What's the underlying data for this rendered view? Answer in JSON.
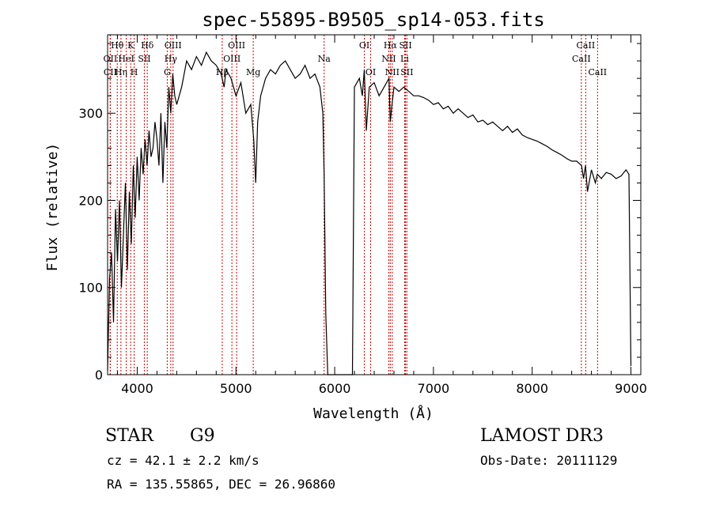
{
  "chart_data": {
    "type": "line",
    "title": "spec-55895-B9505_sp14-053.fits",
    "xlabel": "Wavelength (Å)",
    "ylabel": "Flux (relative)",
    "xlim": [
      3700,
      9100
    ],
    "ylim": [
      0,
      390
    ],
    "x_ticks": [
      4000,
      5000,
      6000,
      7000,
      8000,
      9000
    ],
    "y_ticks": [
      0,
      100,
      200,
      300
    ],
    "series": [
      {
        "name": "flux",
        "x": [
          3700,
          3720,
          3740,
          3760,
          3780,
          3800,
          3820,
          3840,
          3860,
          3880,
          3900,
          3920,
          3940,
          3960,
          3980,
          4000,
          4020,
          4040,
          4060,
          4080,
          4100,
          4120,
          4140,
          4160,
          4180,
          4200,
          4220,
          4240,
          4260,
          4280,
          4300,
          4320,
          4340,
          4360,
          4380,
          4400,
          4450,
          4500,
          4550,
          4600,
          4650,
          4700,
          4750,
          4800,
          4850,
          4880,
          4900,
          4950,
          5000,
          5050,
          5100,
          5150,
          5180,
          5200,
          5220,
          5250,
          5300,
          5350,
          5400,
          5450,
          5500,
          5550,
          5600,
          5650,
          5700,
          5750,
          5800,
          5850,
          5880,
          5893,
          5910,
          5930,
          5950,
          6180,
          6200,
          6250,
          6280,
          6300,
          6320,
          6350,
          6400,
          6450,
          6500,
          6550,
          6563,
          6580,
          6600,
          6650,
          6700,
          6750,
          6800,
          6850,
          6900,
          6950,
          7000,
          7050,
          7100,
          7150,
          7200,
          7250,
          7300,
          7350,
          7400,
          7450,
          7500,
          7550,
          7600,
          7650,
          7700,
          7750,
          7800,
          7850,
          7900,
          7950,
          8000,
          8050,
          8100,
          8150,
          8200,
          8250,
          8300,
          8350,
          8400,
          8450,
          8500,
          8520,
          8540,
          8560,
          8600,
          8640,
          8660,
          8700,
          8750,
          8800,
          8850,
          8900,
          8950,
          8980,
          9000
        ],
        "y": [
          5,
          110,
          140,
          60,
          190,
          130,
          200,
          100,
          160,
          220,
          120,
          210,
          150,
          240,
          180,
          250,
          200,
          260,
          230,
          270,
          240,
          280,
          250,
          260,
          290,
          270,
          240,
          300,
          220,
          290,
          260,
          330,
          300,
          345,
          320,
          310,
          330,
          360,
          350,
          365,
          355,
          370,
          360,
          355,
          345,
          330,
          350,
          340,
          320,
          335,
          300,
          310,
          270,
          220,
          290,
          320,
          340,
          350,
          345,
          355,
          360,
          350,
          340,
          345,
          355,
          340,
          345,
          330,
          300,
          230,
          70,
          0,
          0,
          0,
          330,
          340,
          320,
          350,
          280,
          330,
          335,
          320,
          330,
          340,
          290,
          310,
          330,
          325,
          330,
          325,
          320,
          320,
          318,
          315,
          310,
          312,
          305,
          308,
          300,
          305,
          300,
          295,
          298,
          290,
          292,
          287,
          290,
          285,
          280,
          285,
          278,
          282,
          275,
          272,
          270,
          268,
          265,
          262,
          258,
          255,
          252,
          248,
          245,
          245,
          240,
          225,
          240,
          210,
          235,
          220,
          230,
          225,
          232,
          230,
          225,
          228,
          235,
          230,
          10
        ]
      }
    ],
    "spectral_lines": [
      {
        "label": "Hθ",
        "wavelength": 3798,
        "row": 1
      },
      {
        "label": "OII",
        "wavelength": 3727,
        "row": 2
      },
      {
        "label": "CII",
        "wavelength": 3727,
        "row": 3
      },
      {
        "label": "K",
        "wavelength": 3934,
        "row": 1
      },
      {
        "label": "HeI",
        "wavelength": 3889,
        "row": 2
      },
      {
        "label": "Hη",
        "wavelength": 3835,
        "row": 3
      },
      {
        "label": "Hδ",
        "wavelength": 4102,
        "row": 1
      },
      {
        "label": "SII",
        "wavelength": 4072,
        "row": 2
      },
      {
        "label": "H",
        "wavelength": 3969,
        "row": 3
      },
      {
        "label": "OIII",
        "wavelength": 4363,
        "row": 1
      },
      {
        "label": "Hγ",
        "wavelength": 4340,
        "row": 2
      },
      {
        "label": "G",
        "wavelength": 4304,
        "row": 3
      },
      {
        "label": "OIII",
        "wavelength": 5007,
        "row": 1
      },
      {
        "label": "OIII",
        "wavelength": 4959,
        "row": 2
      },
      {
        "label": "Hβ",
        "wavelength": 4861,
        "row": 3
      },
      {
        "label": "Mg",
        "wavelength": 5175,
        "row": 3
      },
      {
        "label": "Na",
        "wavelength": 5893,
        "row": 2
      },
      {
        "label": "OI",
        "wavelength": 6300,
        "row": 1
      },
      {
        "label": "OI",
        "wavelength": 6364,
        "row": 3
      },
      {
        "label": "Hα",
        "wavelength": 6563,
        "row": 1
      },
      {
        "label": "SII",
        "wavelength": 6717,
        "row": 1
      },
      {
        "label": "NII",
        "wavelength": 6548,
        "row": 2
      },
      {
        "label": "Li",
        "wavelength": 6708,
        "row": 2
      },
      {
        "label": "NII",
        "wavelength": 6583,
        "row": 3
      },
      {
        "label": "SII",
        "wavelength": 6731,
        "row": 3
      },
      {
        "label": "CaII",
        "wavelength": 8542,
        "row": 1
      },
      {
        "label": "CaII",
        "wavelength": 8498,
        "row": 2
      },
      {
        "label": "CaII",
        "wavelength": 8662,
        "row": 3
      }
    ],
    "line_color": "#000000",
    "marker_color": "#cc0000"
  },
  "info": {
    "class_label": "STAR",
    "subclass_label": "G9",
    "survey": "LAMOST DR3",
    "redshift": "cz = 42.1 ± 2.2 km/s",
    "obs_date": "Obs-Date: 20111129",
    "coords": "RA = 135.55865, DEC =  26.96860"
  }
}
